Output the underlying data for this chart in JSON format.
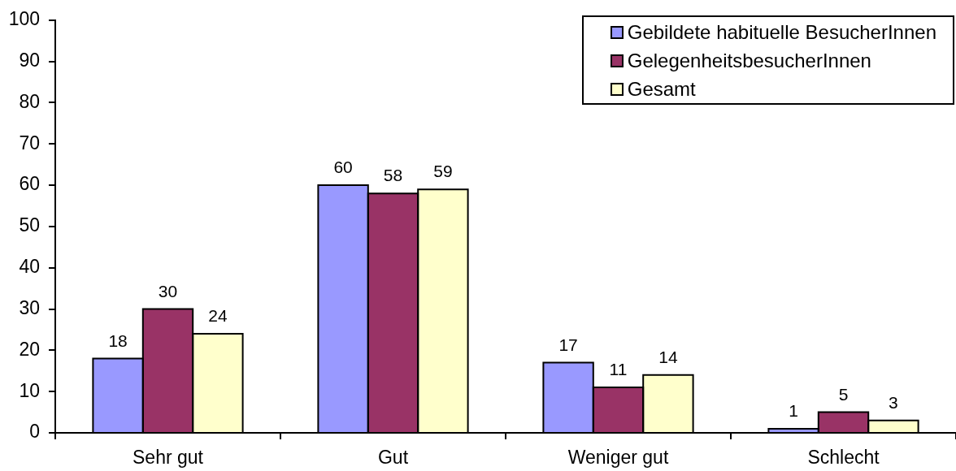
{
  "chart_data": {
    "type": "bar",
    "categories": [
      "Sehr gut",
      "Gut",
      "Weniger gut",
      "Schlecht"
    ],
    "series": [
      {
        "name": "Gebildete habituelle BesucherInnen",
        "color": "#9999ff",
        "values": [
          18,
          60,
          17,
          1
        ]
      },
      {
        "name": "GelegenheitsbesucherInnen",
        "color": "#993366",
        "values": [
          30,
          58,
          11,
          5
        ]
      },
      {
        "name": "Gesamt",
        "color": "#ffffcc",
        "values": [
          24,
          59,
          14,
          3
        ]
      }
    ],
    "ylim": [
      0,
      100
    ],
    "yticks": [
      0,
      10,
      20,
      30,
      40,
      50,
      60,
      70,
      80,
      90,
      100
    ],
    "data_labels": true,
    "legend": "top right",
    "grid": false
  }
}
